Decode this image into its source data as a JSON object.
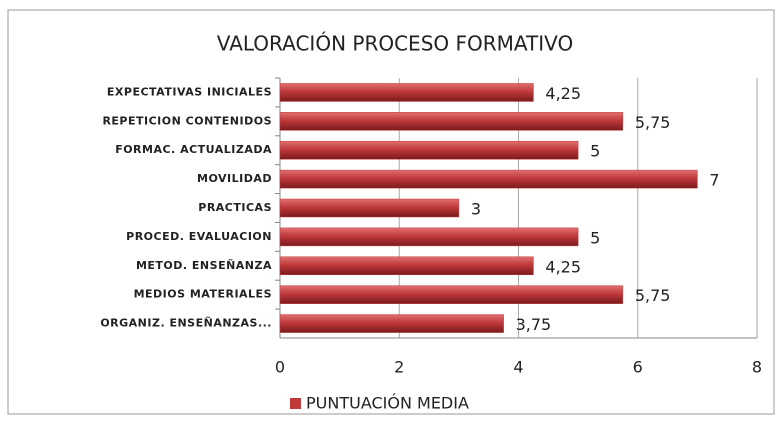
{
  "chart_data": {
    "type": "bar",
    "orientation": "horizontal",
    "title": "VALORACIÓN PROCESO FORMATIVO",
    "categories": [
      "EXPECTATIVAS INICIALES",
      "REPETICION CONTENIDOS",
      "FORMAC. ACTUALIZADA",
      "MOVILIDAD",
      "PRACTICAS",
      "PROCED. EVALUACION",
      "METOD. ENSEÑANZA",
      "MEDIOS MATERIALES",
      "ORGANIZ. ENSEÑANZAS..."
    ],
    "series": [
      {
        "name": "PUNTUACIÓN MEDIA",
        "color": "#c0393b",
        "values": [
          4.25,
          5.75,
          5,
          7,
          3,
          5,
          4.25,
          5.75,
          3.75
        ],
        "value_labels": [
          "4,25",
          "5,75",
          "5",
          "7",
          "3",
          "5",
          "4,25",
          "5,75",
          "3,75"
        ]
      }
    ],
    "xlim": [
      0,
      8
    ],
    "xticks": [
      0,
      2,
      4,
      6,
      8
    ],
    "grid": true,
    "legend": "bottom"
  }
}
